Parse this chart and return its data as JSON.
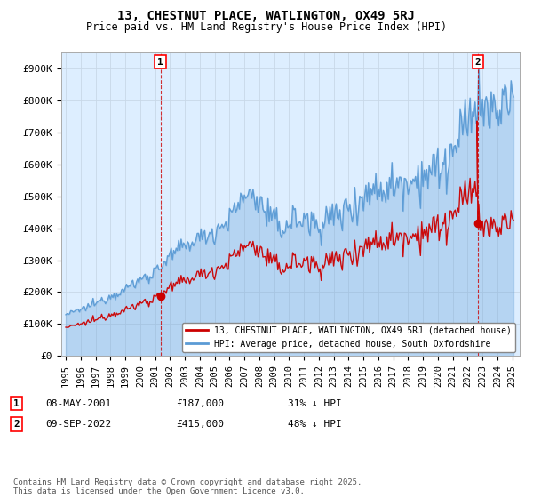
{
  "title": "13, CHESTNUT PLACE, WATLINGTON, OX49 5RJ",
  "subtitle": "Price paid vs. HM Land Registry's House Price Index (HPI)",
  "legend_line1": "13, CHESTNUT PLACE, WATLINGTON, OX49 5RJ (detached house)",
  "legend_line2": "HPI: Average price, detached house, South Oxfordshire",
  "annotation1_date": "08-MAY-2001",
  "annotation1_price": "£187,000",
  "annotation1_hpi": "31% ↓ HPI",
  "annotation1_year": 2001.36,
  "annotation1_value": 187000,
  "annotation2_date": "09-SEP-2022",
  "annotation2_price": "£415,000",
  "annotation2_hpi": "48% ↓ HPI",
  "annotation2_year": 2022.69,
  "annotation2_value": 415000,
  "footer": "Contains HM Land Registry data © Crown copyright and database right 2025.\nThis data is licensed under the Open Government Licence v3.0.",
  "hpi_color": "#5b9bd5",
  "hpi_fill_color": "#ddeeff",
  "price_color": "#cc0000",
  "annotation_color": "#cc0000",
  "background_color": "#ffffff",
  "grid_color": "#c8d8e8",
  "ylim": [
    0,
    950000
  ],
  "yticks": [
    0,
    100000,
    200000,
    300000,
    400000,
    500000,
    600000,
    700000,
    800000,
    900000
  ],
  "ytick_labels": [
    "£0",
    "£100K",
    "£200K",
    "£300K",
    "£400K",
    "£500K",
    "£600K",
    "£700K",
    "£800K",
    "£900K"
  ],
  "xmin": 1994.7,
  "xmax": 2025.5
}
